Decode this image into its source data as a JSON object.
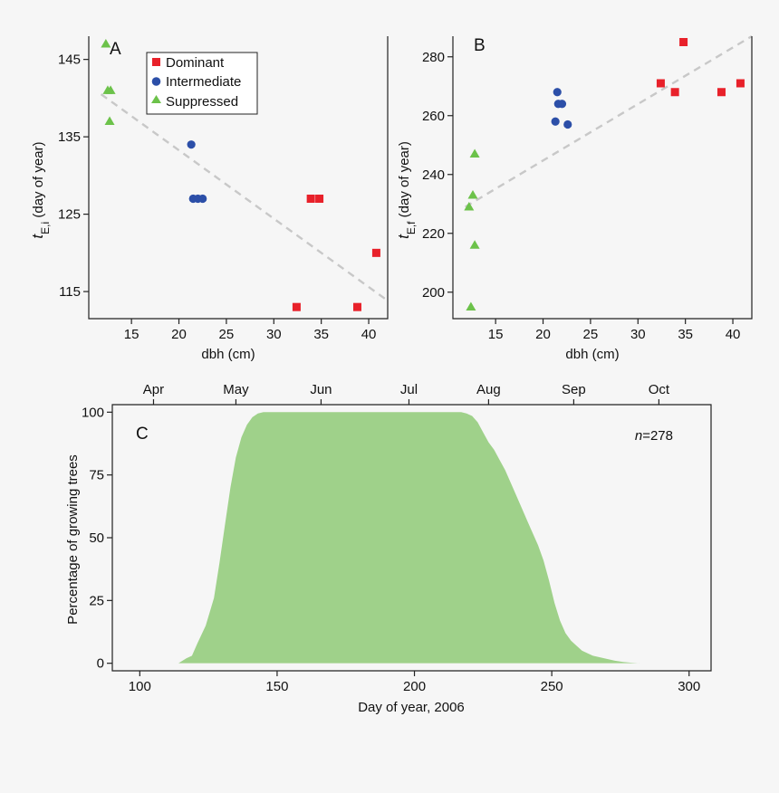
{
  "chart_data": [
    {
      "type": "scatter",
      "panel_label": "A",
      "xlabel": "dbh (cm)",
      "ylabel_main": "t",
      "ylabel_sub": "E,i",
      "ylabel_rest": " (day of year)",
      "xlim": [
        10.5,
        42
      ],
      "ylim": [
        111.5,
        148
      ],
      "xticks": [
        15,
        20,
        25,
        30,
        35,
        40
      ],
      "yticks": [
        115,
        125,
        135,
        145
      ],
      "grid": false,
      "legend_position": "top",
      "series": [
        {
          "name": "Dominant",
          "marker": "square",
          "color": "#e8212a",
          "x": [
            32.4,
            33.9,
            34.8,
            38.8,
            40.8
          ],
          "y": [
            113,
            127,
            127,
            113,
            120
          ]
        },
        {
          "name": "Intermediate",
          "marker": "circle",
          "color": "#2c4fa8",
          "x": [
            21.3,
            21.5,
            22.0,
            22.5
          ],
          "y": [
            134,
            127,
            127,
            127
          ]
        },
        {
          "name": "Suppressed",
          "marker": "triangle",
          "color": "#6cc24a",
          "x": [
            12.3,
            12.5,
            12.8,
            12.7
          ],
          "y": [
            147,
            141,
            141,
            137
          ]
        }
      ],
      "trendline": {
        "style": "dashed",
        "color": "#c8c8c8",
        "x": [
          11.8,
          41.8
        ],
        "y": [
          140.5,
          114
        ]
      }
    },
    {
      "type": "scatter",
      "panel_label": "B",
      "xlabel": "dbh (cm)",
      "ylabel_main": "t",
      "ylabel_sub": "E,f",
      "ylabel_rest": " (day of year)",
      "xlim": [
        10.5,
        42
      ],
      "ylim": [
        191,
        287
      ],
      "xticks": [
        15,
        20,
        25,
        30,
        35,
        40
      ],
      "yticks": [
        200,
        220,
        240,
        260,
        280
      ],
      "grid": false,
      "series": [
        {
          "name": "Dominant",
          "marker": "square",
          "color": "#e8212a",
          "x": [
            32.4,
            33.9,
            34.8,
            38.8,
            40.8
          ],
          "y": [
            271,
            268,
            285,
            268,
            271
          ]
        },
        {
          "name": "Intermediate",
          "marker": "circle",
          "color": "#2c4fa8",
          "x": [
            21.3,
            21.5,
            21.6,
            22.0,
            22.6
          ],
          "y": [
            258,
            268,
            264,
            264,
            257
          ]
        },
        {
          "name": "Suppressed",
          "marker": "triangle",
          "color": "#6cc24a",
          "x": [
            12.2,
            12.6,
            12.8,
            12.8,
            12.4
          ],
          "y": [
            229,
            233,
            247,
            216,
            195
          ]
        }
      ],
      "trendline": {
        "style": "dashed",
        "color": "#c8c8c8",
        "x": [
          11.8,
          42
        ],
        "y": [
          229,
          287
        ]
      }
    },
    {
      "type": "area",
      "panel_label": "C",
      "xlabel": "Day of year, 2006",
      "ylabel": "Percentage of growing trees",
      "annotation_n": "n",
      "annotation_value": "=278",
      "xlim": [
        90,
        308
      ],
      "ylim": [
        -3,
        103
      ],
      "xticks": [
        100,
        150,
        200,
        250,
        300
      ],
      "yticks": [
        0,
        25,
        50,
        75,
        100
      ],
      "month_labels": [
        {
          "label": "Apr",
          "day": 105
        },
        {
          "label": "May",
          "day": 135
        },
        {
          "label": "Jun",
          "day": 166
        },
        {
          "label": "Jul",
          "day": 198
        },
        {
          "label": "Aug",
          "day": 227
        },
        {
          "label": "Sep",
          "day": 258
        },
        {
          "label": "Oct",
          "day": 289
        }
      ],
      "fill_color": "#9fd18a",
      "x": [
        114,
        117,
        119,
        121,
        124,
        127,
        129,
        131,
        133,
        135,
        137,
        139,
        141,
        143,
        145,
        150,
        160,
        180,
        200,
        210,
        214,
        217,
        219,
        221,
        223,
        225,
        227,
        229,
        231,
        233,
        235,
        237,
        239,
        241,
        243,
        245,
        247,
        249,
        251,
        253,
        255,
        257,
        259,
        261,
        263,
        265,
        267,
        269,
        271,
        273,
        276,
        279,
        282
      ],
      "y": [
        0,
        2,
        3,
        8,
        15,
        26,
        40,
        55,
        70,
        82,
        90,
        95,
        98,
        99.5,
        100,
        100,
        100,
        100,
        100,
        100,
        100,
        100,
        99.5,
        98.5,
        96,
        92,
        88,
        85,
        81,
        77,
        72,
        67,
        62,
        57,
        52,
        47,
        41,
        33,
        24,
        17,
        12,
        9,
        7,
        5,
        4,
        3,
        2.5,
        2,
        1.5,
        1,
        0.5,
        0.2,
        0
      ]
    }
  ]
}
